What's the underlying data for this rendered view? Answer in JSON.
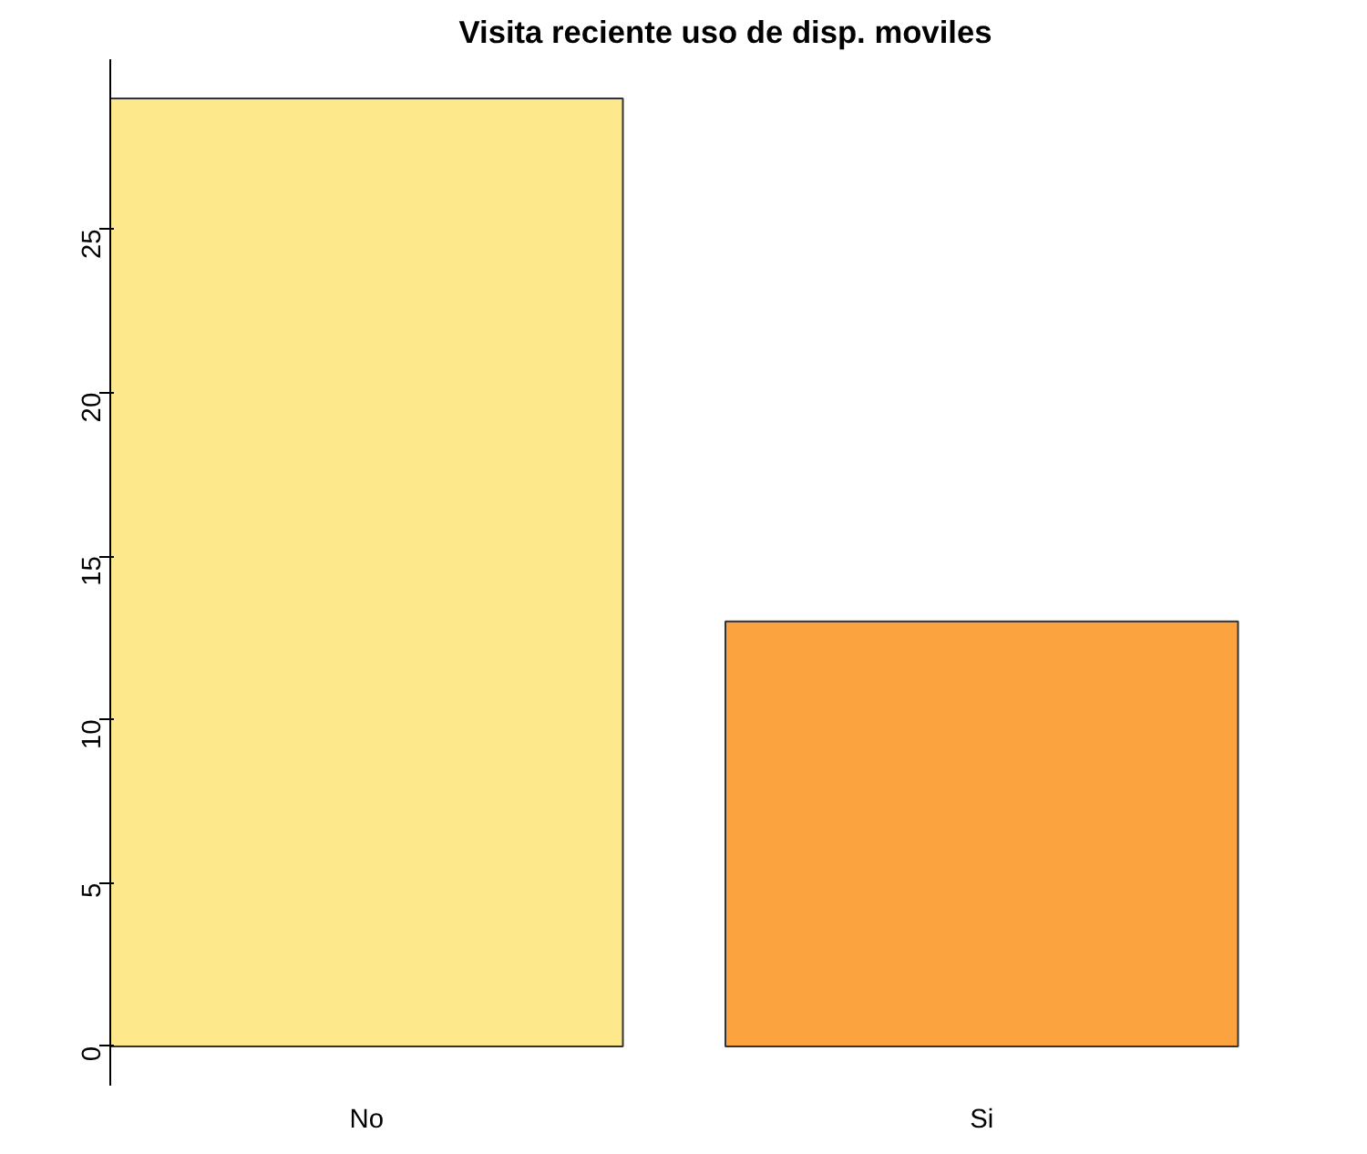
{
  "chart_data": {
    "type": "bar",
    "title": "Visita reciente uso de disp. moviles",
    "categories": [
      "No",
      "Si"
    ],
    "values": [
      29,
      13
    ],
    "colors": [
      "#fde88c",
      "#fba33f"
    ],
    "ylim": [
      -1.2,
      30.2
    ],
    "yticks": [
      0,
      5,
      10,
      15,
      20,
      25
    ],
    "grid": false
  }
}
